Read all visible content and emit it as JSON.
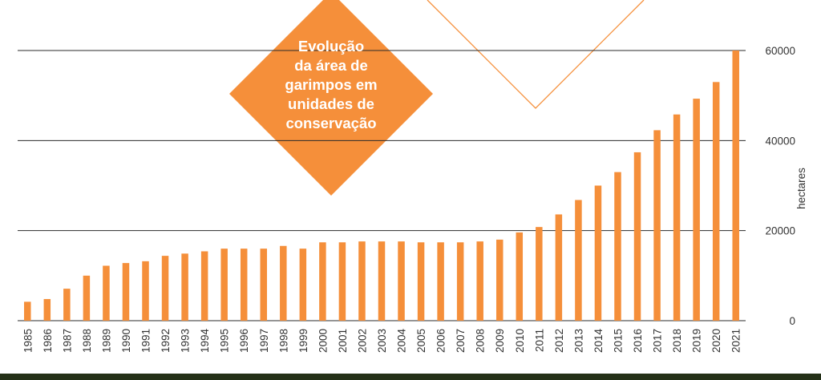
{
  "colors": {
    "bar": "#f58f3a",
    "accent": "#f58f3a",
    "grid": "#2b2b2b",
    "text": "#333333",
    "footer": "#243018"
  },
  "chart_data": {
    "type": "bar",
    "title_lines": [
      "Evolução",
      "da área de",
      "garimpos em",
      "unidades de",
      "conservação"
    ],
    "ylabel": "hectares",
    "ylim": [
      0,
      60000
    ],
    "yticks": [
      0,
      20000,
      40000,
      60000
    ],
    "ytick_labels": [
      "0",
      "20000",
      "40000",
      "60000"
    ],
    "grid": "horizontal",
    "categories": [
      "1985",
      "1986",
      "1987",
      "1988",
      "1989",
      "1990",
      "1991",
      "1992",
      "1993",
      "1994",
      "1995",
      "1996",
      "1997",
      "1998",
      "1999",
      "2000",
      "2001",
      "2002",
      "2003",
      "2004",
      "2005",
      "2006",
      "2007",
      "2008",
      "2009",
      "2010",
      "2011",
      "2012",
      "2013",
      "2014",
      "2015",
      "2016",
      "2017",
      "2018",
      "2019",
      "2020",
      "2021"
    ],
    "values": [
      4200,
      4800,
      7100,
      10000,
      12200,
      12800,
      13200,
      14400,
      14900,
      15400,
      16000,
      16000,
      16000,
      16600,
      16000,
      17400,
      17400,
      17600,
      17600,
      17600,
      17400,
      17400,
      17400,
      17600,
      18000,
      19600,
      20800,
      23600,
      26800,
      30000,
      33000,
      37400,
      42300,
      45800,
      49300,
      53000,
      60000
    ]
  }
}
